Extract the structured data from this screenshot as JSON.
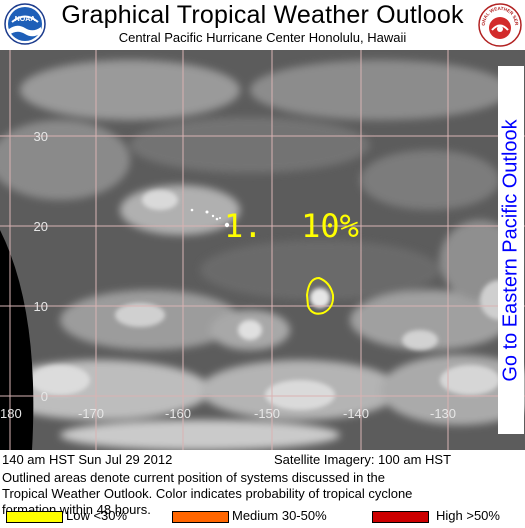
{
  "header": {
    "title": "Graphical Tropical Weather Outlook",
    "subtitle": "Central Pacific Hurricane Center   Honolulu, Hawaii",
    "noaa_logo_text": "NOAA",
    "nws_logo_text": "NATIONAL WEATHER SERVICE"
  },
  "map": {
    "lat_labels": [
      "30",
      "20",
      "10",
      "0"
    ],
    "lon_labels": [
      "180",
      "-170",
      "-160",
      "-150",
      "-140",
      "-130"
    ],
    "outlook_label": "1.  10%",
    "outlook_probability_percent": 10,
    "outline_color": "#ffff00",
    "label_color": "#ffff00",
    "grid_color": "#d9b3b3"
  },
  "eastern_pacific_link": "Go to Eastern Pacific Outlook",
  "footer": {
    "issue_time": "140 am HST Sun Jul 29 2012",
    "imagery_time": "Satellite Imagery: 100 am HST",
    "description_line1": "Outlined areas denote current position of systems discussed in the",
    "description_line2": "Tropical Weather Outlook. Color indicates probability of tropical cyclone",
    "description_line3": "formation within 48 hours."
  },
  "legend": {
    "low_label": "Low <30%",
    "low_color": "#ffff00",
    "medium_label": "Medium 30-50%",
    "medium_color": "#ff6600",
    "high_label": "High >50%",
    "high_color": "#cc0000"
  }
}
